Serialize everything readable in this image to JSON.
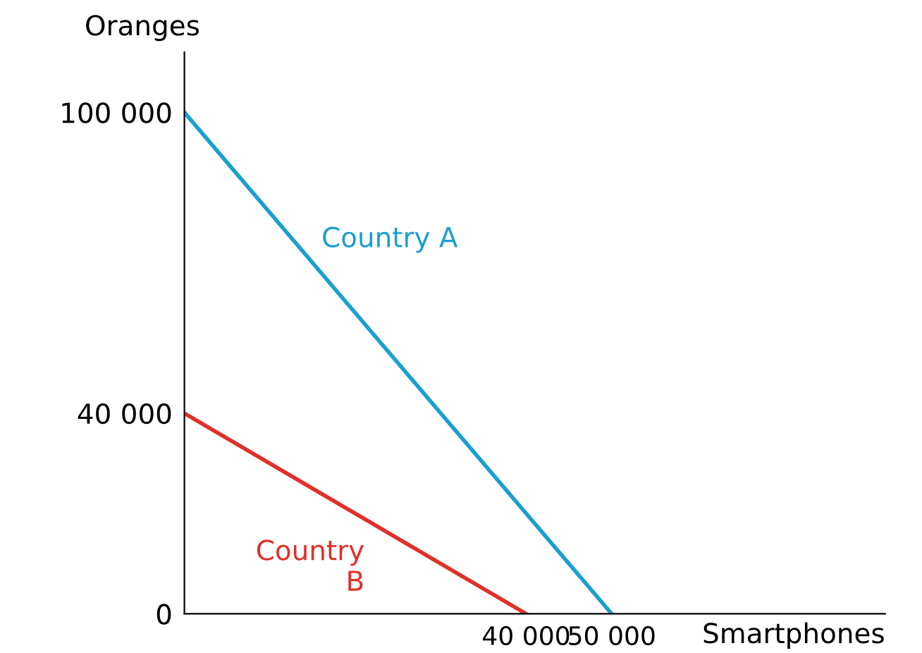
{
  "chart_data": {
    "type": "line",
    "xlabel": "Smartphones",
    "ylabel": "Oranges",
    "xlim": [
      0,
      82000
    ],
    "ylim": [
      0,
      112000
    ],
    "xticks": [
      {
        "value": 40000,
        "label": "40 000"
      },
      {
        "value": 50000,
        "label": "50 000"
      }
    ],
    "yticks": [
      0,
      {
        "value": 40000,
        "label": "40 000"
      },
      {
        "value": 100000,
        "label": "100 000"
      }
    ],
    "grid": false,
    "legend": false,
    "marker": "none",
    "line_style": "solid",
    "series": [
      {
        "name": "Country A",
        "color": "#1a9fd0",
        "x": [
          0,
          50000
        ],
        "values": [
          100000,
          0
        ]
      },
      {
        "name": "Country B",
        "color": "#e0302a",
        "x": [
          0,
          40000
        ],
        "values": [
          40000,
          0
        ]
      }
    ]
  }
}
